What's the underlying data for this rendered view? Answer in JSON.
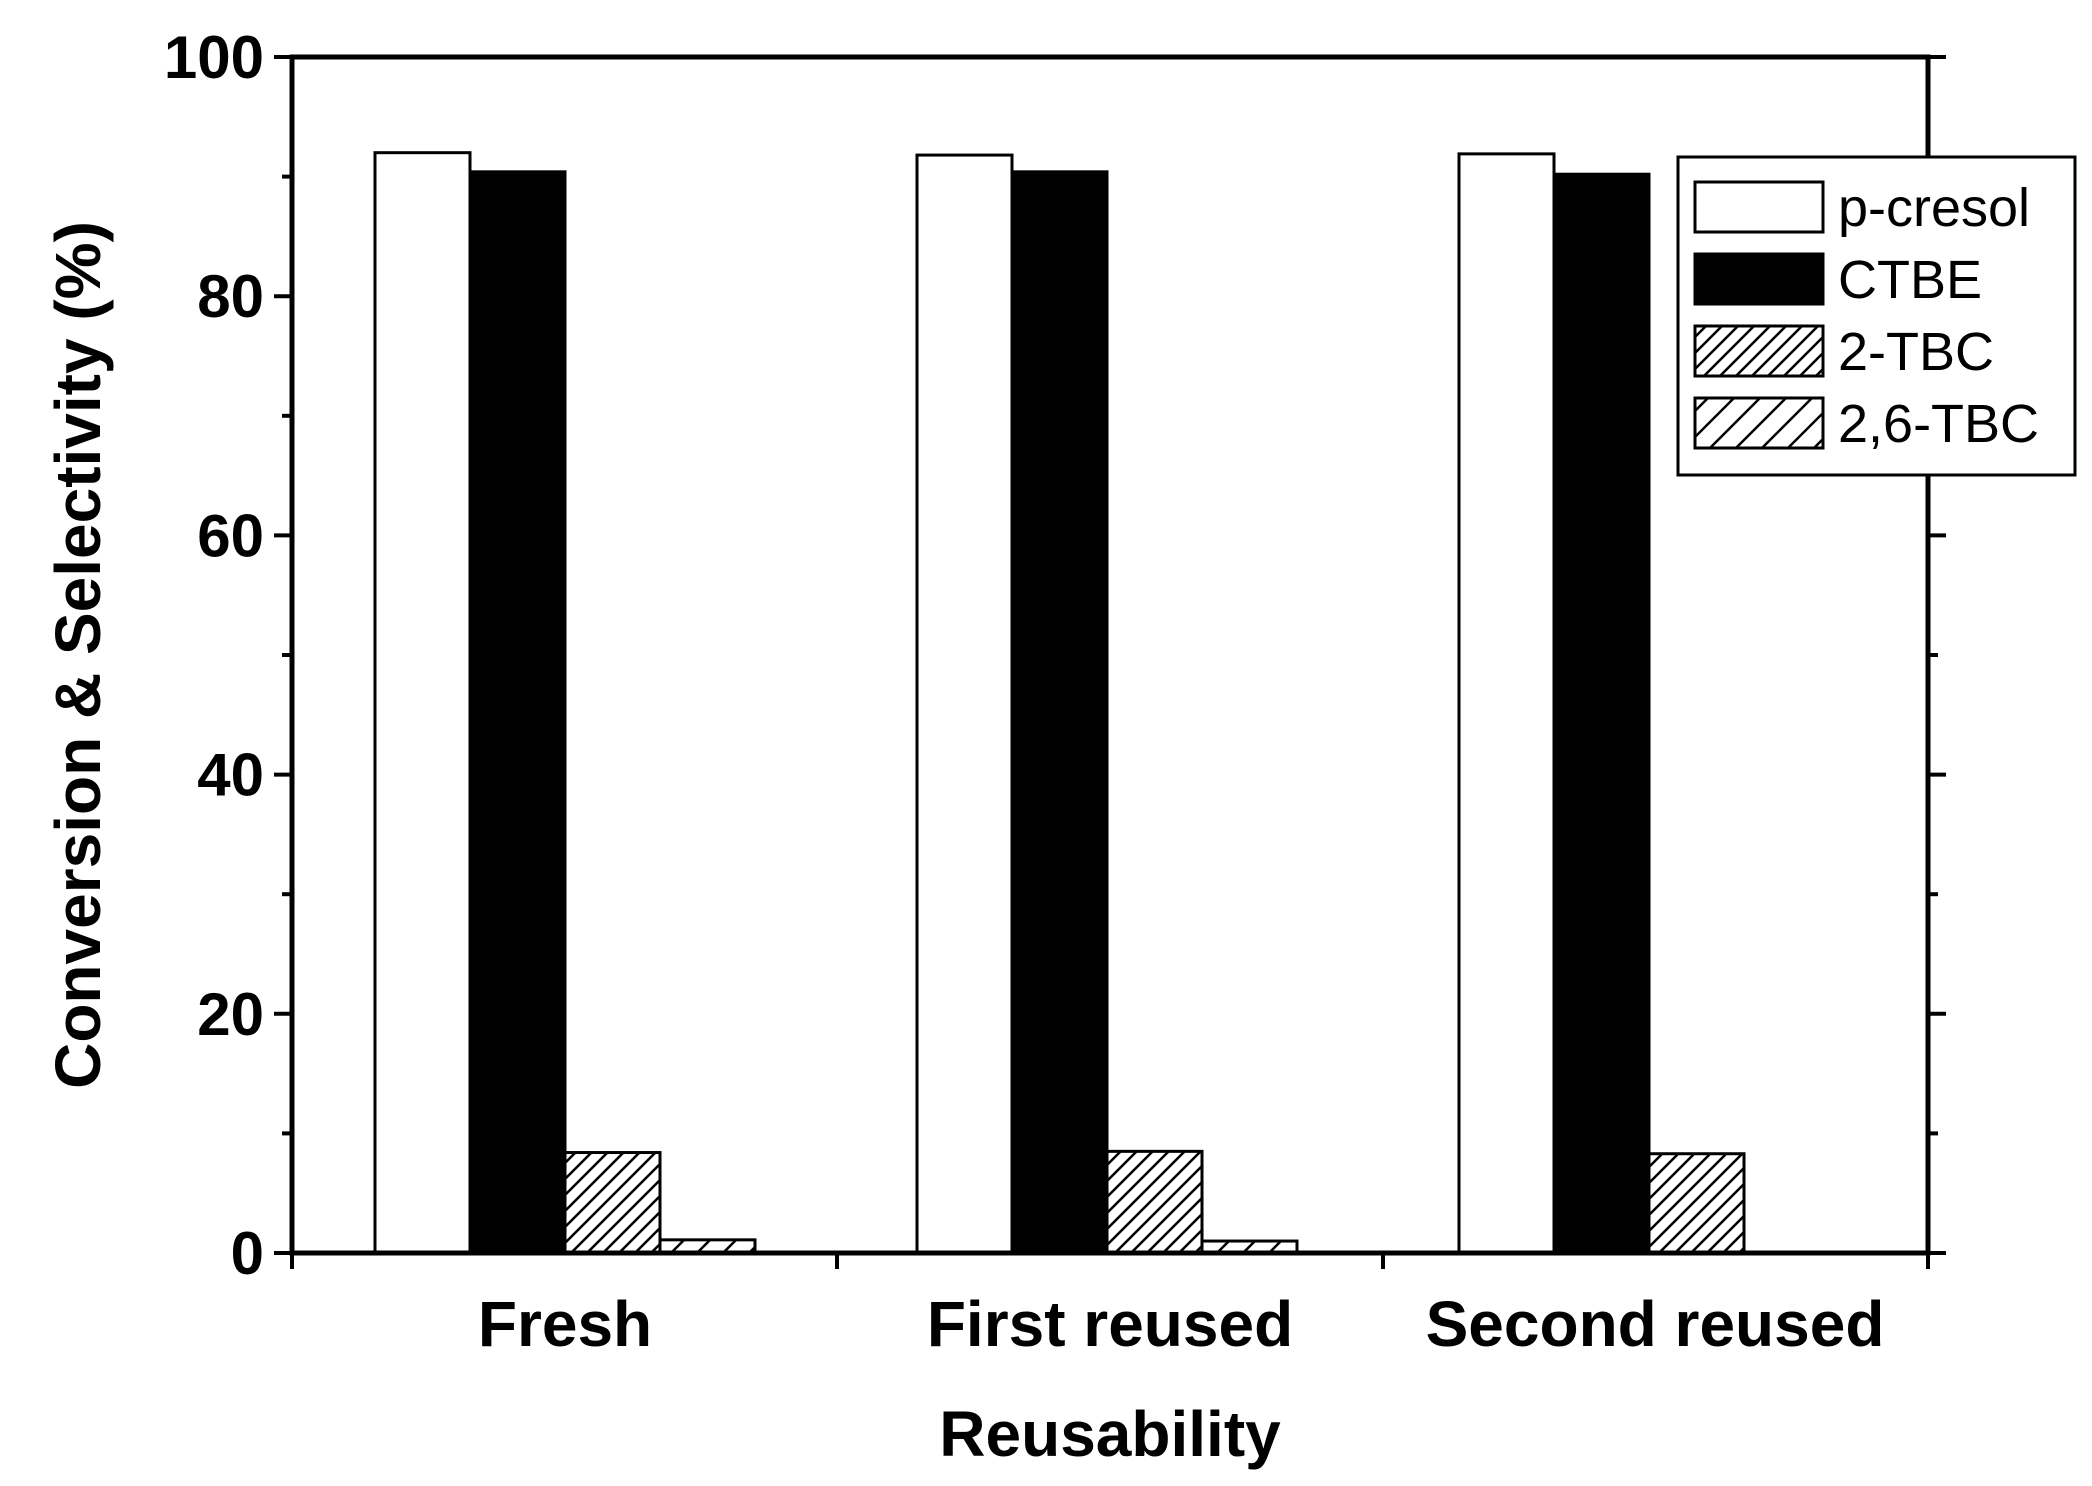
{
  "chart_data": {
    "type": "bar",
    "xlabel": "Reusability",
    "ylabel": "Conversion & Selectivity (%)",
    "ylim": [
      0,
      100
    ],
    "yticks": [
      "0",
      "20",
      "40",
      "60",
      "80",
      "100"
    ],
    "categories": [
      "Fresh",
      "First reused",
      "Second reused"
    ],
    "series": [
      {
        "name": "p-cresol",
        "values": [
          92.0,
          91.8,
          91.9
        ],
        "fill": "#ffffff",
        "pattern": "none"
      },
      {
        "name": "CTBE",
        "values": [
          90.4,
          90.4,
          90.2
        ],
        "fill": "#000000",
        "pattern": "none"
      },
      {
        "name": "2-TBC",
        "values": [
          8.4,
          8.5,
          8.3
        ],
        "fill": "#ffffff",
        "pattern": "dense-diagonal"
      },
      {
        "name": "2,6-TBC",
        "values": [
          1.1,
          1.0,
          0.0
        ],
        "fill": "#ffffff",
        "pattern": "sparse-diagonal"
      }
    ],
    "legend_position": "top-right",
    "grid": false
  }
}
